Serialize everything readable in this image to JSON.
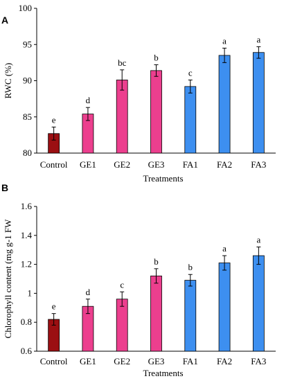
{
  "colors": {
    "control": "#9b0f12",
    "ge": "#ec3f8e",
    "fa": "#3d8ff0",
    "error_bar": "#000000"
  },
  "chart_data": [
    {
      "panel": "A",
      "type": "bar",
      "categories": [
        "Control",
        "GE1",
        "GE2",
        "GE3",
        "FA1",
        "FA2",
        "FA3"
      ],
      "values": [
        82.7,
        85.4,
        90.1,
        91.4,
        89.2,
        93.5,
        93.9
      ],
      "errors": [
        0.9,
        0.9,
        1.4,
        0.8,
        0.9,
        1.0,
        0.8
      ],
      "letters": [
        "e",
        "d",
        "bc",
        "b",
        "c",
        "a",
        "a"
      ],
      "xlabel": "Treatments",
      "ylabel": "RWC (%)",
      "ylim": [
        80,
        100
      ],
      "yticks": [
        80,
        85,
        90,
        95,
        100
      ],
      "ytick_labels": [
        "80",
        "85",
        "90",
        "95",
        "100"
      ],
      "grid": false
    },
    {
      "panel": "B",
      "type": "bar",
      "categories": [
        "Control",
        "GE1",
        "GE2",
        "GE3",
        "FA1",
        "FA2",
        "FA3"
      ],
      "values": [
        0.82,
        0.91,
        0.96,
        1.12,
        1.09,
        1.21,
        1.26
      ],
      "errors": [
        0.04,
        0.05,
        0.05,
        0.05,
        0.04,
        0.05,
        0.06
      ],
      "letters": [
        "e",
        "d",
        "c",
        "b",
        "b",
        "a",
        "a"
      ],
      "xlabel": "Treatments",
      "ylabel": "Chlorophyll content (mg g-1 FW",
      "ylim": [
        0.6,
        1.6
      ],
      "yticks": [
        0.6,
        0.8,
        1.0,
        1.2,
        1.4,
        1.6
      ],
      "ytick_labels": [
        "0.6",
        "0.8",
        "1",
        "1.2",
        "1.4",
        "1.6"
      ],
      "grid": false
    }
  ]
}
